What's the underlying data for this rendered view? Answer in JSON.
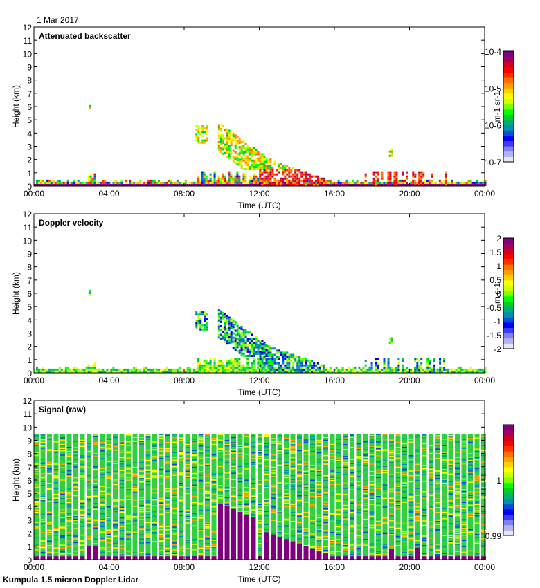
{
  "date_label": "1 Mar 2017",
  "footer": "Kumpula 1.5 micron Doppler Lidar",
  "colors": {
    "colormap": [
      "#e6e6f0",
      "#b4b4f0",
      "#8080f4",
      "#3c3cff",
      "#0000ff",
      "#0050d8",
      "#0090b0",
      "#00b070",
      "#00d020",
      "#00ff00",
      "#80ff00",
      "#d0ff00",
      "#ffff00",
      "#ffd000",
      "#ffa000",
      "#ff7000",
      "#ff3000",
      "#ff0000",
      "#d00020",
      "#a00060",
      "#800080"
    ]
  },
  "chart_data": [
    {
      "type": "heatmap",
      "title": "Attenuated backscatter",
      "xlabel": "Time (UTC)",
      "ylabel": "Height (km)",
      "xlim": [
        0,
        24
      ],
      "ylim": [
        0,
        12
      ],
      "x_ticks": [
        "00:00",
        "04:00",
        "08:00",
        "12:00",
        "16:00",
        "20:00",
        "00:00"
      ],
      "y_ticks": [
        "0",
        "1",
        "2",
        "3",
        "4",
        "5",
        "6",
        "7",
        "8",
        "9",
        "10",
        "11",
        "12"
      ],
      "colorbar": {
        "scale": "log",
        "range": [
          1e-07,
          0.0001
        ],
        "ticks": [
          "10-7",
          "10-6",
          "10-5",
          "10-4"
        ],
        "label": "m-1 sr-1"
      },
      "features": [
        {
          "desc": "boundary layer",
          "t_start": 0,
          "t_end": 24,
          "h_top": 0.3
        },
        {
          "desc": "plume",
          "t_start": 2.9,
          "t_end": 3.1,
          "h_bottom": 5.8,
          "h_top": 6.2
        },
        {
          "desc": "mid-level cloud",
          "t_start": 8.6,
          "t_end": 9.2,
          "h_bottom": 3.2,
          "h_top": 4.6
        },
        {
          "desc": "descending cloud",
          "t_start": 9.8,
          "t_end": 12.5,
          "h_bottom": 1.2,
          "h_top": 4.8
        },
        {
          "desc": "precipitation",
          "t_start": 12.0,
          "t_end": 15.5,
          "h_bottom": 0,
          "h_top": 2.2
        },
        {
          "desc": "isolated cloud",
          "t_start": 18.9,
          "t_end": 19.1,
          "h_bottom": 2.2,
          "h_top": 2.7
        }
      ]
    },
    {
      "type": "heatmap",
      "title": "Doppler velocity",
      "xlabel": "Time (UTC)",
      "ylabel": "Height (km)",
      "xlim": [
        0,
        24
      ],
      "ylim": [
        0,
        12
      ],
      "x_ticks": [
        "00:00",
        "04:00",
        "08:00",
        "12:00",
        "16:00",
        "20:00",
        "00:00"
      ],
      "y_ticks": [
        "0",
        "1",
        "2",
        "3",
        "4",
        "5",
        "6",
        "7",
        "8",
        "9",
        "10",
        "11",
        "12"
      ],
      "colorbar": {
        "scale": "linear",
        "range": [
          -2,
          2
        ],
        "ticks": [
          "-2",
          "-1.5",
          "-1",
          "-0.5",
          "0",
          "0.5",
          "1",
          "1.5",
          "2"
        ],
        "label": "m s-1"
      }
    },
    {
      "type": "heatmap",
      "title": "Signal (raw)",
      "xlabel": "Time (UTC)",
      "ylabel": "Height (km)",
      "xlim": [
        0,
        24
      ],
      "ylim": [
        0,
        12
      ],
      "x_ticks": [
        "00:00",
        "04:00",
        "08:00",
        "12:00",
        "16:00",
        "20:00",
        "00:00"
      ],
      "y_ticks": [
        "0",
        "1",
        "2",
        "3",
        "4",
        "5",
        "6",
        "7",
        "8",
        "9",
        "10",
        "11",
        "12"
      ],
      "data_top_km": 9.5,
      "colorbar": {
        "scale": "linear",
        "range": [
          0.99,
          1.01
        ],
        "ticks": [
          "0.99",
          "1"
        ],
        "label": ""
      }
    }
  ]
}
